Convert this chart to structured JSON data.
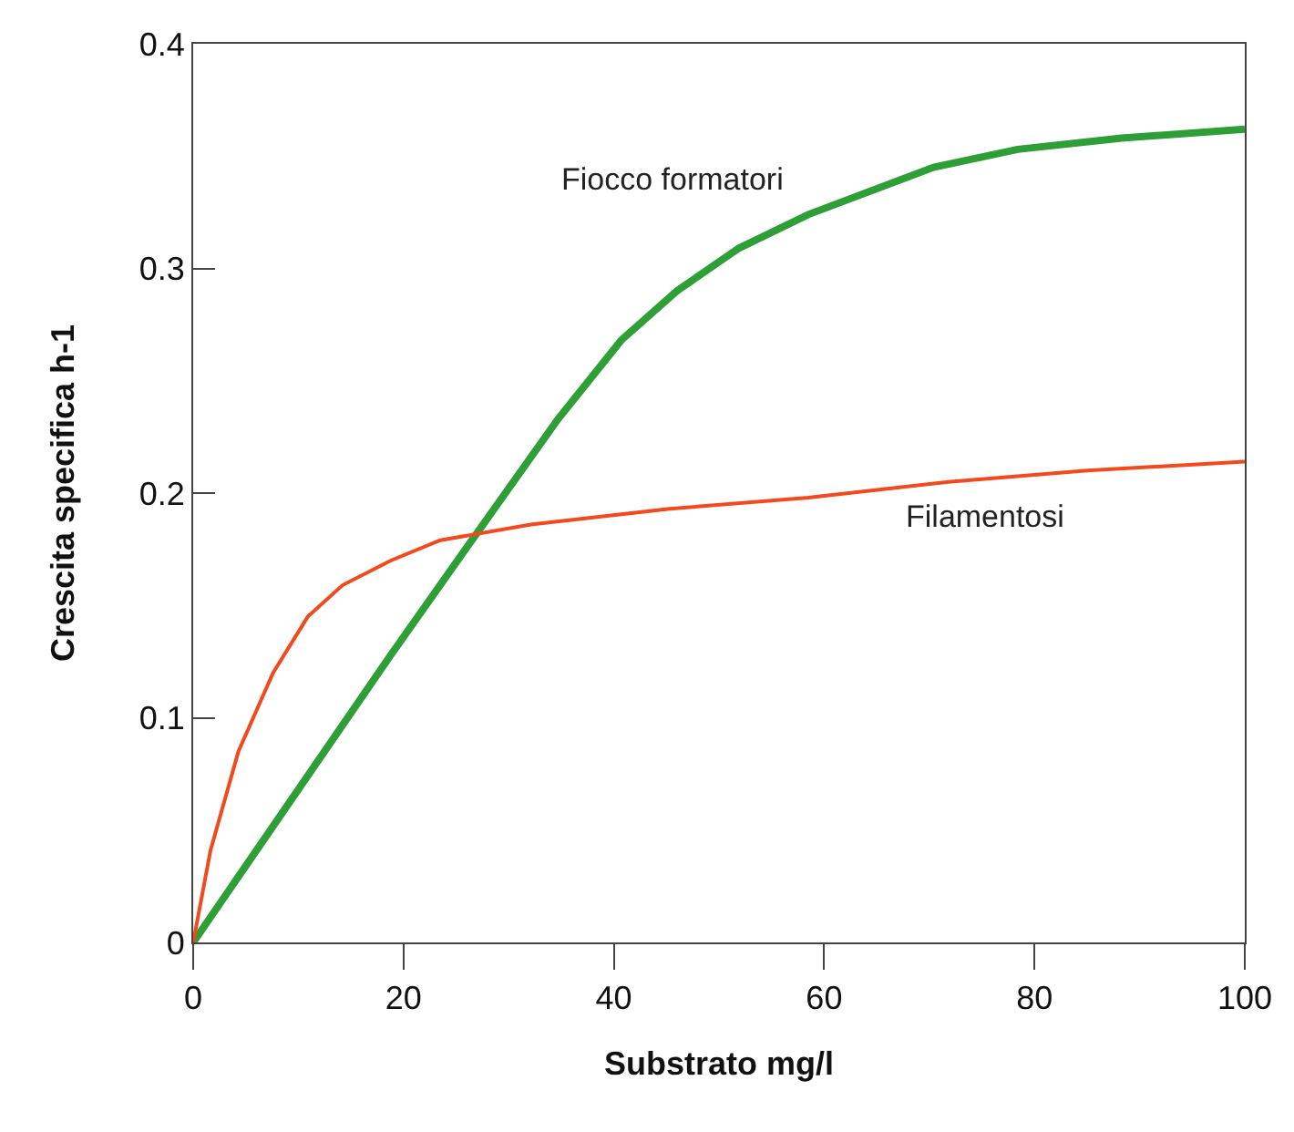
{
  "chart_data": {
    "type": "line",
    "xlabel": "Substrato mg/l",
    "ylabel": "Crescita specifica h-1",
    "xlim": [
      0,
      100
    ],
    "xticks": [
      0,
      20,
      40,
      60,
      80,
      100
    ],
    "ylim": [
      0,
      0.4
    ],
    "yticks": [
      0,
      0.1,
      0.2,
      0.3,
      0.4
    ],
    "grid": false,
    "legend": false,
    "marker": "none",
    "series": [
      {
        "name": "Fiocco formatori",
        "color": "#2e9e36",
        "x": [
          0,
          18.8,
          26.8,
          34.7,
          40.7,
          46,
          51.9,
          58.5,
          70.4,
          78.4,
          88.3,
          100
        ],
        "values": [
          0,
          0.128,
          0.181,
          0.233,
          0.268,
          0.29,
          0.309,
          0.324,
          0.345,
          0.353,
          0.358,
          0.362
        ]
      },
      {
        "name": "Filamentosi",
        "color": "#f04a1e",
        "x": [
          0,
          1.65,
          4.3,
          7.6,
          10.9,
          14.2,
          18.8,
          23.5,
          32.1,
          45.3,
          58.5,
          71.8,
          85,
          100
        ],
        "values": [
          0,
          0.041,
          0.085,
          0.12,
          0.145,
          0.159,
          0.17,
          0.179,
          0.186,
          0.193,
          0.198,
          0.205,
          0.21,
          0.214
        ]
      }
    ]
  }
}
